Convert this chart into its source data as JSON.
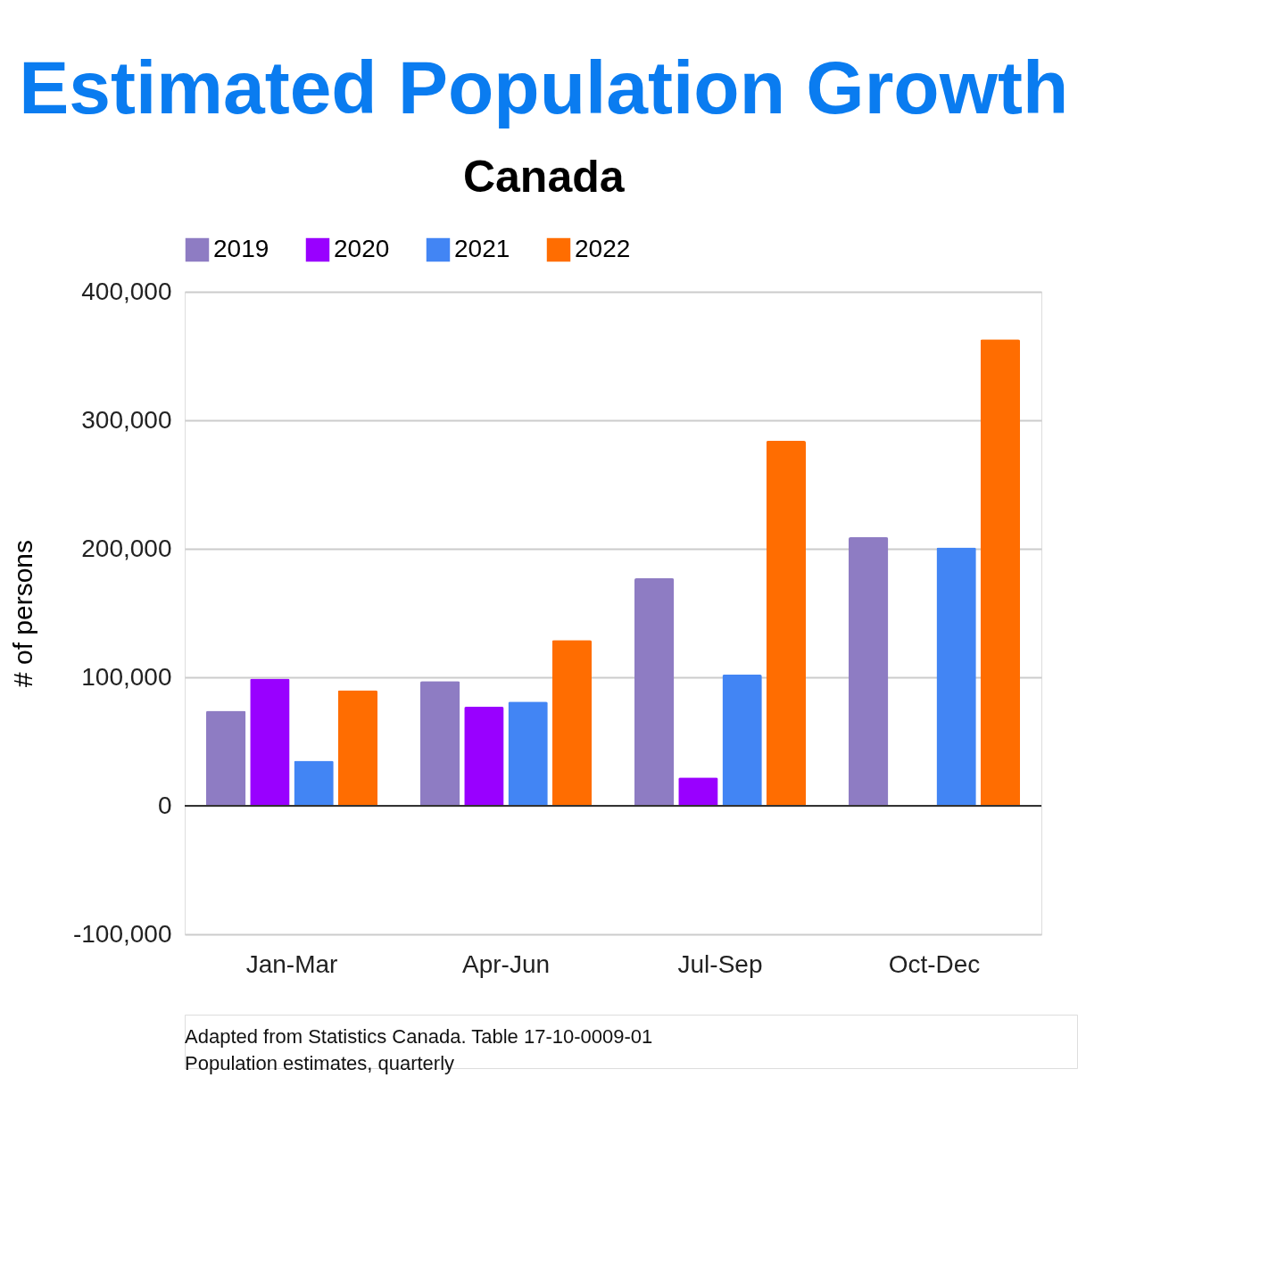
{
  "chart_data": {
    "type": "bar",
    "title": "Estimated Population Growth",
    "subtitle": "Canada",
    "ylabel": "# of persons",
    "categories": [
      "Jan-Mar",
      "Apr-Jun",
      "Jul-Sep",
      "Oct-Dec"
    ],
    "series": [
      {
        "name": "2019",
        "color": "#8e7cc3",
        "values": [
          74000,
          97000,
          177000,
          209000
        ]
      },
      {
        "name": "2020",
        "color": "#9900ff",
        "values": [
          99000,
          77000,
          22000,
          null
        ]
      },
      {
        "name": "2021",
        "color": "#4285f4",
        "values": [
          35000,
          81000,
          102000,
          201000
        ]
      },
      {
        "name": "2022",
        "color": "#ff6d01",
        "values": [
          90000,
          129000,
          284000,
          363000
        ]
      }
    ],
    "ylim": [
      -100000,
      400000
    ],
    "yticks": [
      {
        "value": -100000,
        "label": "-100,000"
      },
      0,
      {
        "value": 100000,
        "label": "100,000"
      },
      {
        "value": 200000,
        "label": "200,000"
      },
      {
        "value": 300000,
        "label": "300,000"
      },
      {
        "value": 400000,
        "label": "400,000"
      }
    ],
    "grid": "y",
    "legend": "top",
    "annotations": [
      "Adapted from Statistics Canada. Table 17-10-0009-01",
      "Population estimates, quarterly"
    ]
  }
}
